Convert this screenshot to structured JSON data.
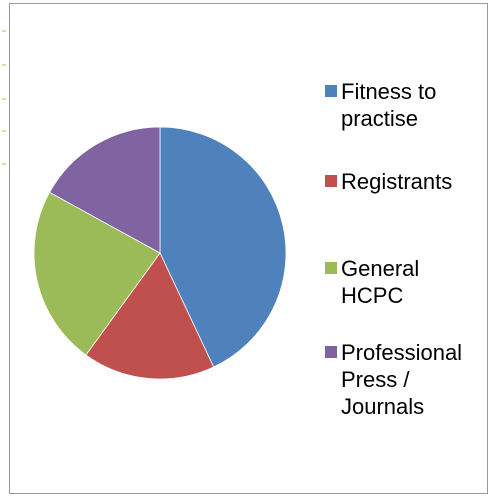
{
  "chart_data": {
    "type": "pie",
    "title": "",
    "categories": [
      "Fitness to practise",
      "Registrants",
      "General HCPC",
      "Professional Press / Journals"
    ],
    "values": [
      43,
      17,
      23,
      17
    ],
    "colors": [
      "#4f81bd",
      "#c0504d",
      "#9bbb59",
      "#8064a2"
    ],
    "legend_position": "right",
    "legend": [
      {
        "label": "Fitness to\npractise",
        "color": "#4f81bd"
      },
      {
        "label": "Registrants",
        "color": "#c0504d"
      },
      {
        "label": "General\nHCPC",
        "color": "#9bbb59"
      },
      {
        "label": "Professional\nPress /\nJournals",
        "color": "#8064a2"
      }
    ]
  }
}
